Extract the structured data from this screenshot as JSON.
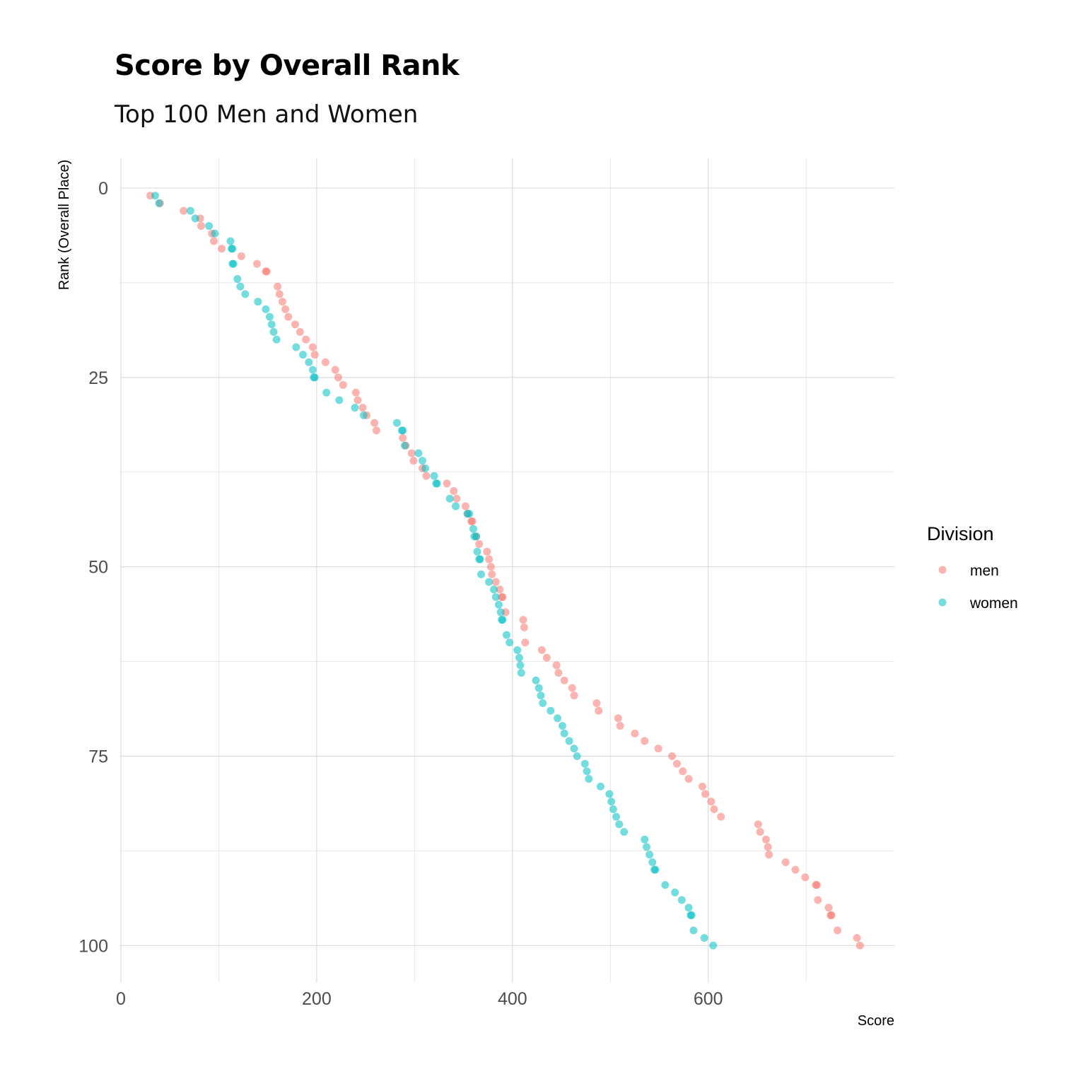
{
  "chart_data": {
    "type": "scatter",
    "title": "Score by Overall Rank",
    "subtitle": "Top 100 Men and Women",
    "xlabel": "Score",
    "ylabel": "Rank (Overall Place)",
    "xlim": [
      0,
      790
    ],
    "ylim": [
      0,
      100
    ],
    "y_reversed": true,
    "x_ticks": [
      "0",
      "200",
      "400",
      "600"
    ],
    "y_ticks": [
      "0",
      "25",
      "50",
      "75",
      "100"
    ],
    "grid": true,
    "legend": {
      "title": "Division",
      "position": "right",
      "entries": [
        "men",
        "women"
      ]
    },
    "series": [
      {
        "name": "men",
        "color": "#F8766D",
        "points": [
          [
            30,
            1
          ],
          [
            40,
            2
          ],
          [
            64,
            3
          ],
          [
            81,
            4
          ],
          [
            82,
            5
          ],
          [
            93,
            6
          ],
          [
            95,
            7
          ],
          [
            103,
            8
          ],
          [
            123,
            9
          ],
          [
            139,
            10
          ],
          [
            148,
            11
          ],
          [
            149,
            11
          ],
          [
            160,
            13
          ],
          [
            162,
            14
          ],
          [
            165,
            15
          ],
          [
            168,
            16
          ],
          [
            171,
            17
          ],
          [
            178,
            18
          ],
          [
            183,
            19
          ],
          [
            189,
            20
          ],
          [
            196,
            21
          ],
          [
            198,
            22
          ],
          [
            209,
            23
          ],
          [
            219,
            24
          ],
          [
            222,
            25
          ],
          [
            227,
            26
          ],
          [
            240,
            27
          ],
          [
            242,
            28
          ],
          [
            247,
            29
          ],
          [
            251,
            30
          ],
          [
            259,
            31
          ],
          [
            261,
            32
          ],
          [
            288,
            33
          ],
          [
            291,
            34
          ],
          [
            297,
            35
          ],
          [
            299,
            36
          ],
          [
            308,
            37
          ],
          [
            312,
            38
          ],
          [
            333,
            39
          ],
          [
            340,
            40
          ],
          [
            343,
            41
          ],
          [
            352,
            42
          ],
          [
            354,
            43
          ],
          [
            358,
            44
          ],
          [
            359,
            44
          ],
          [
            363,
            46
          ],
          [
            366,
            47
          ],
          [
            374,
            48
          ],
          [
            376,
            49
          ],
          [
            378,
            50
          ],
          [
            379,
            51
          ],
          [
            383,
            52
          ],
          [
            387,
            53
          ],
          [
            389,
            54
          ],
          [
            390,
            54
          ],
          [
            393,
            56
          ],
          [
            411,
            57
          ],
          [
            412,
            58
          ],
          [
            413,
            60
          ],
          [
            430,
            61
          ],
          [
            435,
            62
          ],
          [
            445,
            63
          ],
          [
            447,
            64
          ],
          [
            453,
            65
          ],
          [
            461,
            66
          ],
          [
            463,
            67
          ],
          [
            486,
            68
          ],
          [
            488,
            69
          ],
          [
            508,
            70
          ],
          [
            510,
            71
          ],
          [
            525,
            72
          ],
          [
            535,
            73
          ],
          [
            549,
            74
          ],
          [
            563,
            75
          ],
          [
            568,
            76
          ],
          [
            574,
            77
          ],
          [
            580,
            78
          ],
          [
            594,
            79
          ],
          [
            597,
            80
          ],
          [
            603,
            81
          ],
          [
            606,
            82
          ],
          [
            613,
            83
          ],
          [
            651,
            84
          ],
          [
            653,
            85
          ],
          [
            659,
            86
          ],
          [
            661,
            87
          ],
          [
            662,
            88
          ],
          [
            679,
            89
          ],
          [
            689,
            90
          ],
          [
            699,
            91
          ],
          [
            710,
            92
          ],
          [
            711,
            92
          ],
          [
            712,
            94
          ],
          [
            723,
            95
          ],
          [
            725,
            96
          ],
          [
            726,
            96
          ],
          [
            732,
            98
          ],
          [
            752,
            99
          ],
          [
            755,
            100
          ]
        ]
      },
      {
        "name": "women",
        "color": "#00BFC4",
        "points": [
          [
            35,
            1
          ],
          [
            39,
            2
          ],
          [
            71,
            3
          ],
          [
            76,
            4
          ],
          [
            90,
            5
          ],
          [
            96,
            6
          ],
          [
            112,
            7
          ],
          [
            113,
            8
          ],
          [
            114,
            8
          ],
          [
            114,
            10
          ],
          [
            115,
            10
          ],
          [
            119,
            12
          ],
          [
            122,
            13
          ],
          [
            127,
            14
          ],
          [
            140,
            15
          ],
          [
            148,
            16
          ],
          [
            152,
            17
          ],
          [
            154,
            18
          ],
          [
            156,
            19
          ],
          [
            159,
            20
          ],
          [
            179,
            21
          ],
          [
            186,
            22
          ],
          [
            192,
            23
          ],
          [
            196,
            24
          ],
          [
            197,
            25
          ],
          [
            198,
            25
          ],
          [
            210,
            27
          ],
          [
            223,
            28
          ],
          [
            239,
            29
          ],
          [
            248,
            30
          ],
          [
            282,
            31
          ],
          [
            287,
            32
          ],
          [
            288,
            32
          ],
          [
            290,
            34
          ],
          [
            304,
            35
          ],
          [
            308,
            36
          ],
          [
            311,
            37
          ],
          [
            320,
            38
          ],
          [
            322,
            39
          ],
          [
            323,
            39
          ],
          [
            336,
            41
          ],
          [
            342,
            42
          ],
          [
            354,
            43
          ],
          [
            356,
            43
          ],
          [
            360,
            45
          ],
          [
            361,
            46
          ],
          [
            363,
            46
          ],
          [
            364,
            48
          ],
          [
            366,
            49
          ],
          [
            367,
            49
          ],
          [
            368,
            51
          ],
          [
            376,
            52
          ],
          [
            381,
            53
          ],
          [
            383,
            54
          ],
          [
            386,
            55
          ],
          [
            388,
            56
          ],
          [
            389,
            57
          ],
          [
            390,
            57
          ],
          [
            394,
            59
          ],
          [
            397,
            60
          ],
          [
            405,
            61
          ],
          [
            407,
            62
          ],
          [
            408,
            63
          ],
          [
            409,
            64
          ],
          [
            424,
            65
          ],
          [
            427,
            66
          ],
          [
            429,
            67
          ],
          [
            431,
            68
          ],
          [
            439,
            69
          ],
          [
            446,
            70
          ],
          [
            451,
            71
          ],
          [
            453,
            72
          ],
          [
            458,
            73
          ],
          [
            463,
            74
          ],
          [
            466,
            75
          ],
          [
            474,
            76
          ],
          [
            476,
            77
          ],
          [
            478,
            78
          ],
          [
            490,
            79
          ],
          [
            499,
            80
          ],
          [
            501,
            81
          ],
          [
            503,
            82
          ],
          [
            506,
            83
          ],
          [
            509,
            84
          ],
          [
            514,
            85
          ],
          [
            535,
            86
          ],
          [
            537,
            87
          ],
          [
            540,
            88
          ],
          [
            543,
            89
          ],
          [
            545,
            90
          ],
          [
            546,
            90
          ],
          [
            556,
            92
          ],
          [
            566,
            93
          ],
          [
            573,
            94
          ],
          [
            580,
            95
          ],
          [
            582,
            96
          ],
          [
            583,
            96
          ],
          [
            585,
            98
          ],
          [
            596,
            99
          ],
          [
            605,
            100
          ]
        ]
      }
    ]
  }
}
